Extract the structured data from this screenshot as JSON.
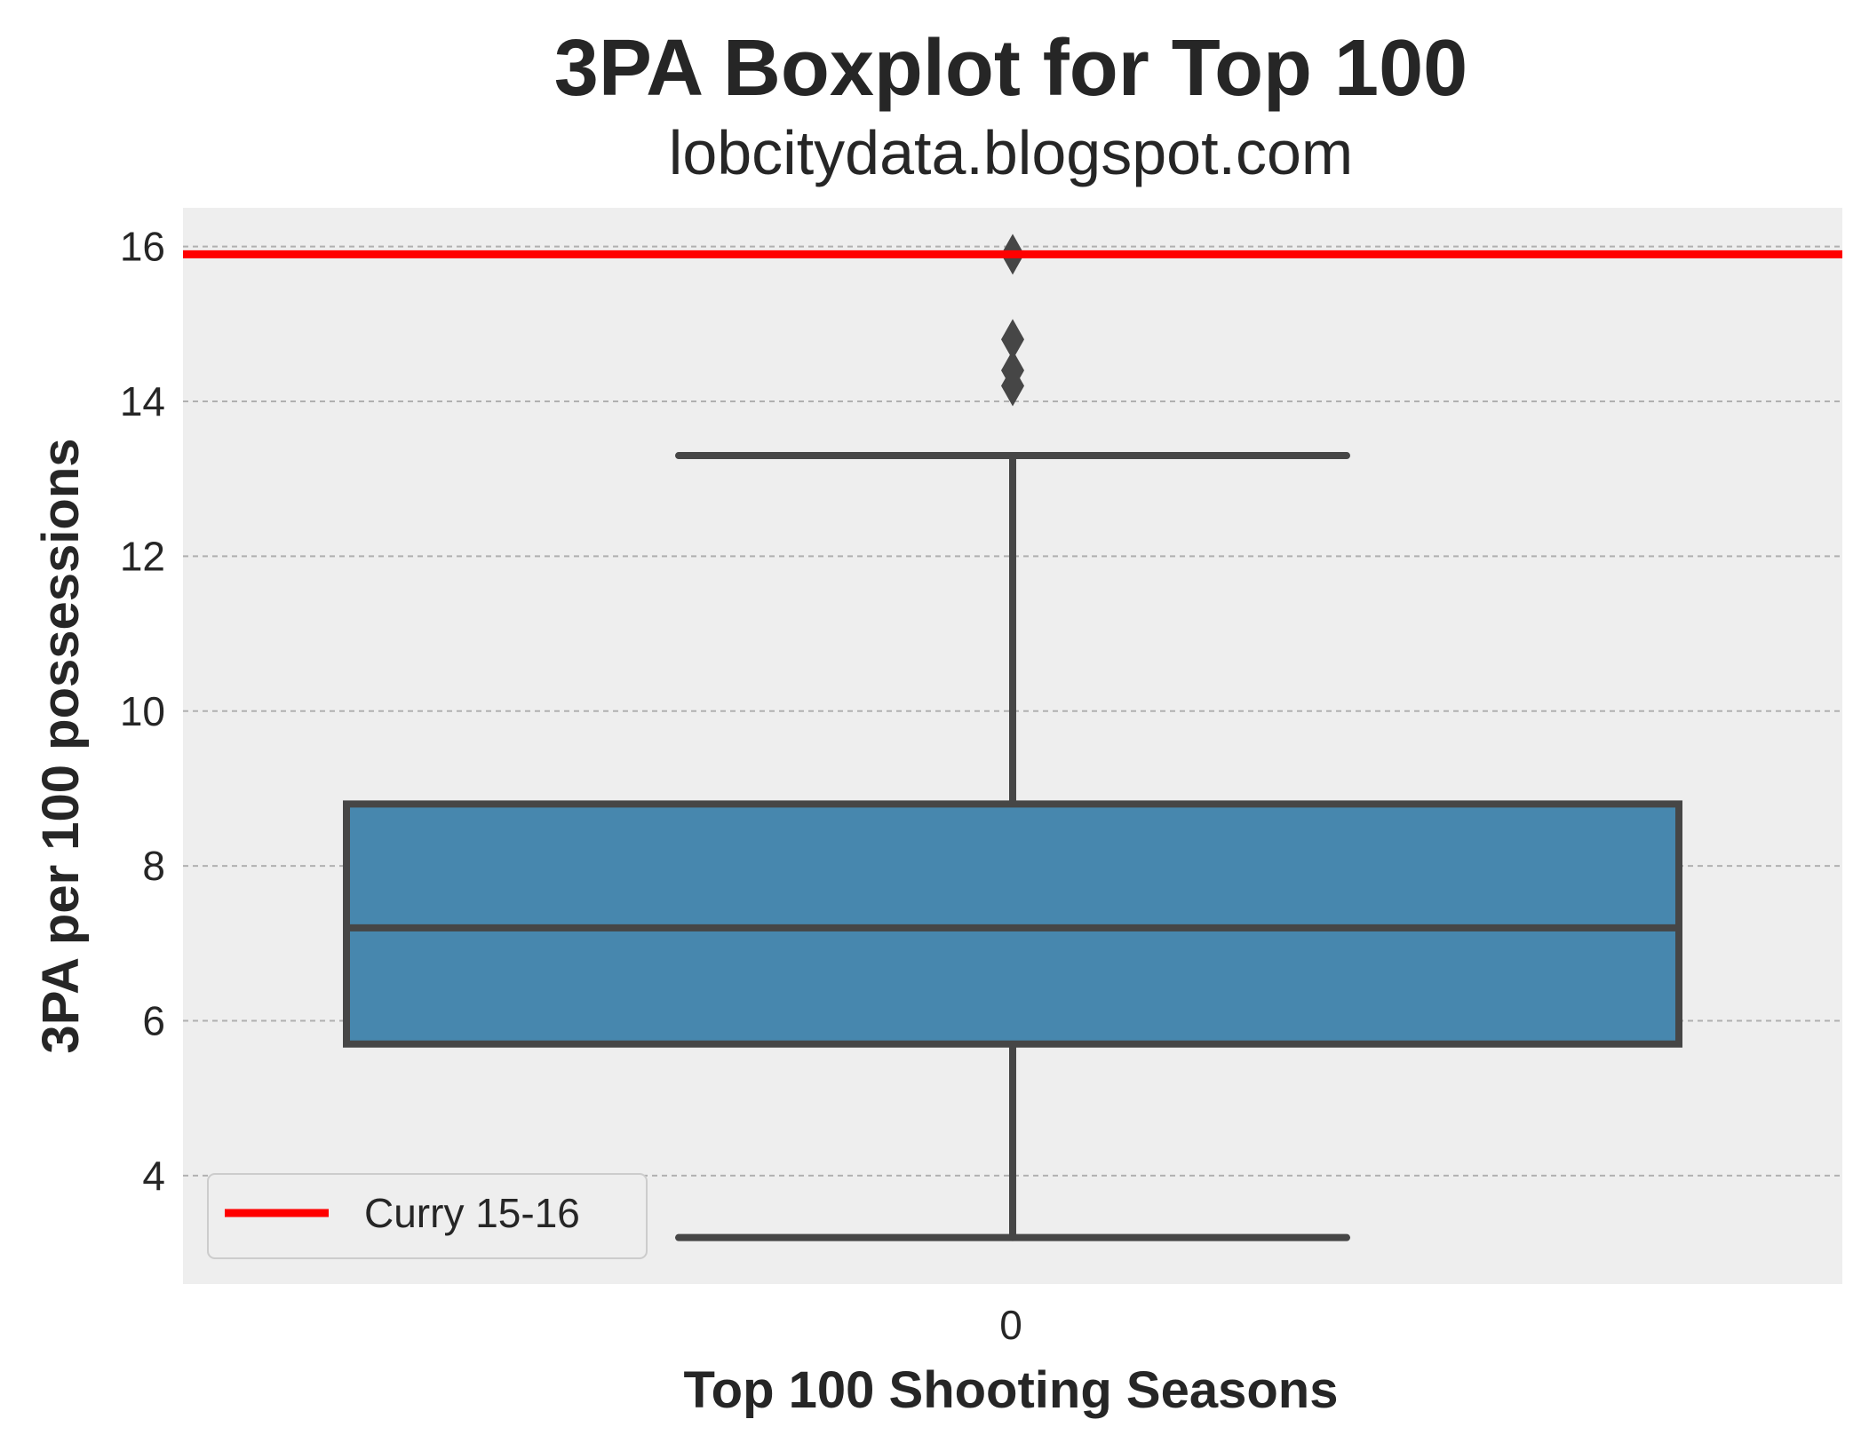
{
  "chart_data": {
    "type": "box",
    "title": "3PA Boxplot for Top 100",
    "subtitle": "lobcitydata.blogspot.com",
    "xlabel": "Top 100 Shooting Seasons",
    "ylabel": "3PA per 100 possessions",
    "categories": [
      "0"
    ],
    "ylim": [
      2.6,
      16.5
    ],
    "yticks": [
      4,
      6,
      8,
      10,
      12,
      14,
      16
    ],
    "grid": true,
    "box": {
      "whisker_low": 3.2,
      "q1": 5.7,
      "median": 7.2,
      "q3": 8.8,
      "whisker_high": 13.3,
      "outliers": [
        14.2,
        14.4,
        14.8,
        15.9
      ]
    },
    "reference_line": {
      "name": "Curry 15-16",
      "value": 15.9
    },
    "legend": {
      "placement": "lower-left",
      "entries": [
        "Curry 15-16"
      ]
    },
    "colors": {
      "box_fill": "#4787ae",
      "box_edge": "#464646",
      "reference_line": "#ff0000",
      "plot_background": "#eeeeee",
      "grid": "#b0b0b0",
      "text": "#262626"
    }
  }
}
